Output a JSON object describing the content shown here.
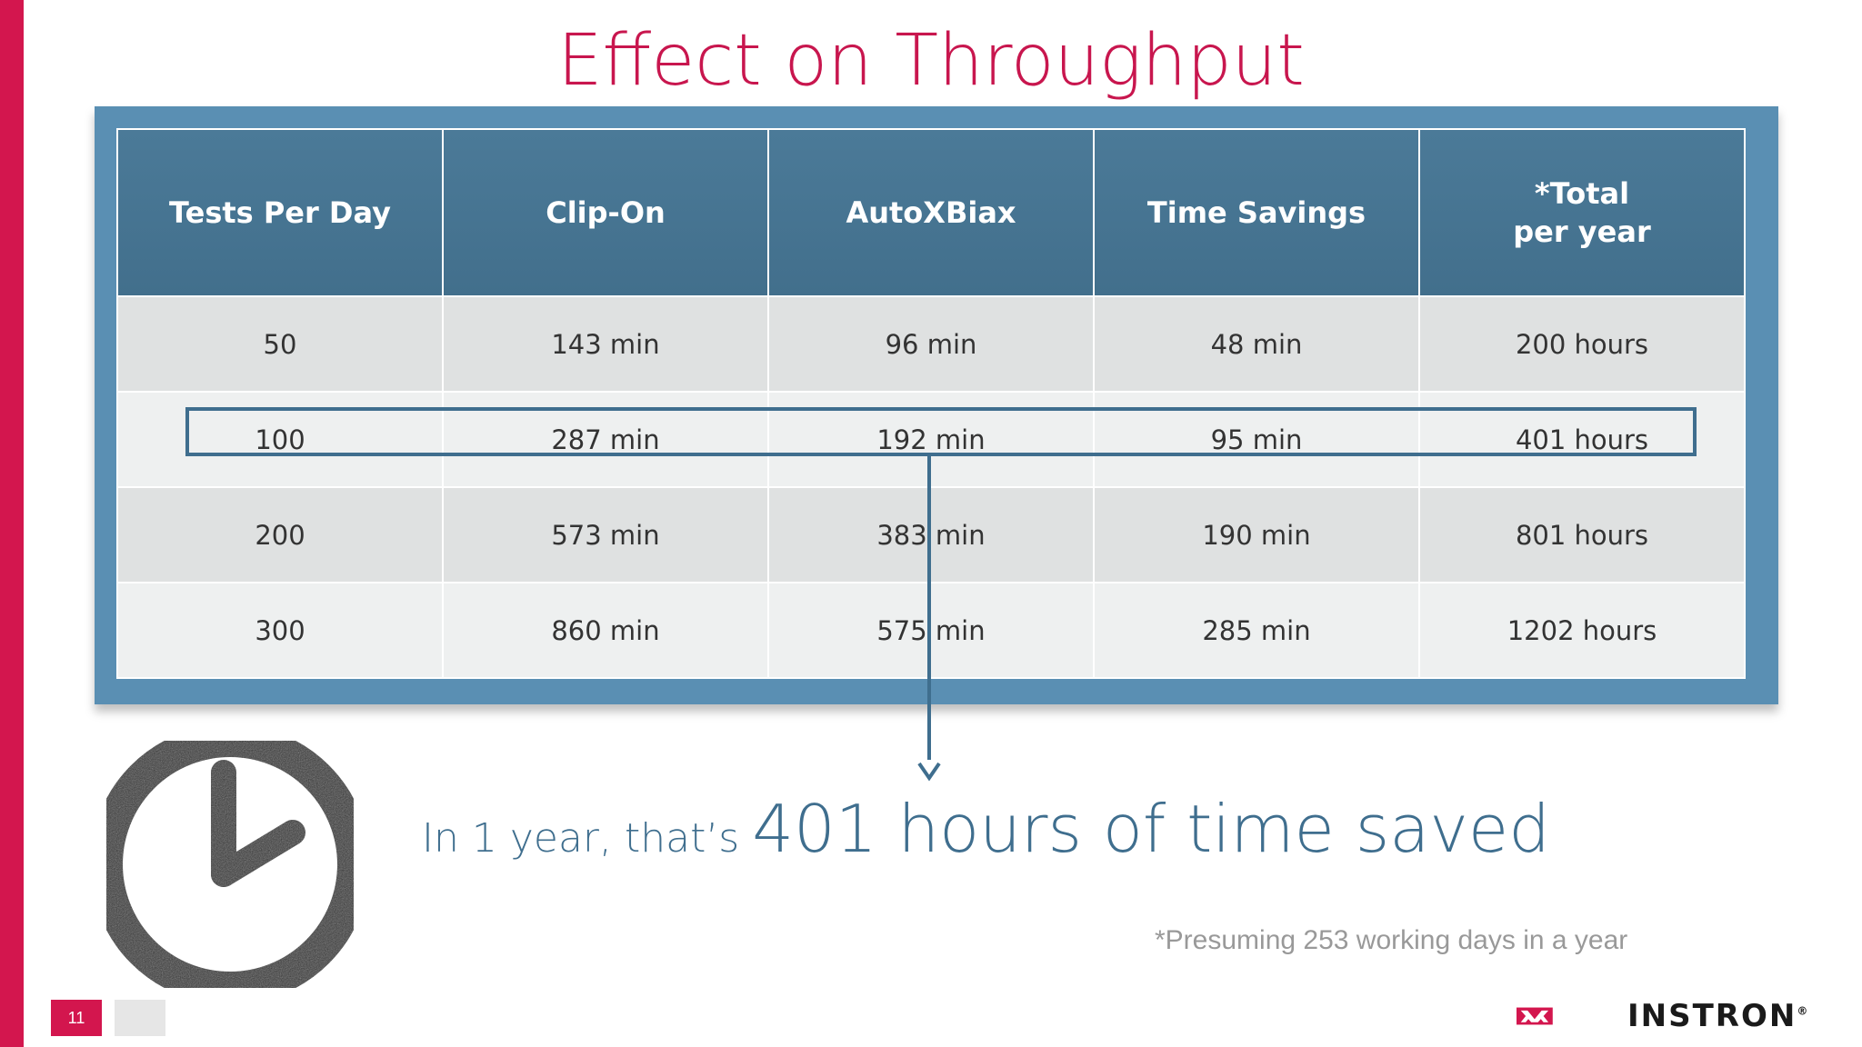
{
  "title": "Effect on Throughput",
  "table": {
    "headers": [
      "Tests Per Day",
      "Clip-On",
      "AutoXBiax",
      "Time Savings",
      "*Total\nper year"
    ],
    "rows": [
      [
        "50",
        "143 min",
        "96 min",
        "48 min",
        "200 hours"
      ],
      [
        "100",
        "287 min",
        "192 min",
        "95 min",
        "401 hours"
      ],
      [
        "200",
        "573 min",
        "383 min",
        "190 min",
        "801 hours"
      ],
      [
        "300",
        "860 min",
        "575 min",
        "285 min",
        "1202 hours"
      ]
    ],
    "highlighted_row": 1
  },
  "callout": {
    "prefix": "In 1 year, that’s ",
    "emphasis": "401 hours of time saved"
  },
  "footnote": "*Presuming 253 working days in a year",
  "page_number": "11",
  "logo": {
    "name": "INSTRON",
    "mark": "®"
  },
  "colors": {
    "accent": "#d3164e",
    "table_header": "#4b7a98",
    "frame": "#5a8fb3",
    "callout": "#3f6e8e"
  },
  "icons": [
    "clock-icon",
    "arrow-down-icon",
    "instron-logo-icon"
  ]
}
